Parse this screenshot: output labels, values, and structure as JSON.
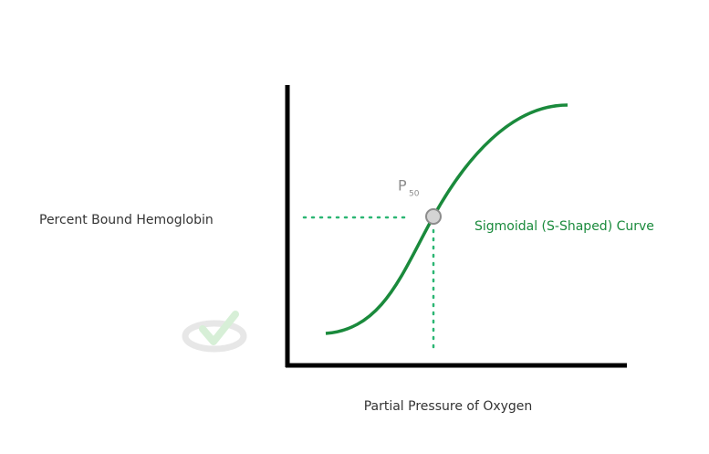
{
  "axis_labels": {
    "y": "Percent Bound Hemoglobin",
    "x": "Partial Pressure of Oxygen"
  },
  "p50_label": {
    "main": "P",
    "sub": "50"
  },
  "curve_label": "Sigmoidal (S-Shaped) Curve"
}
